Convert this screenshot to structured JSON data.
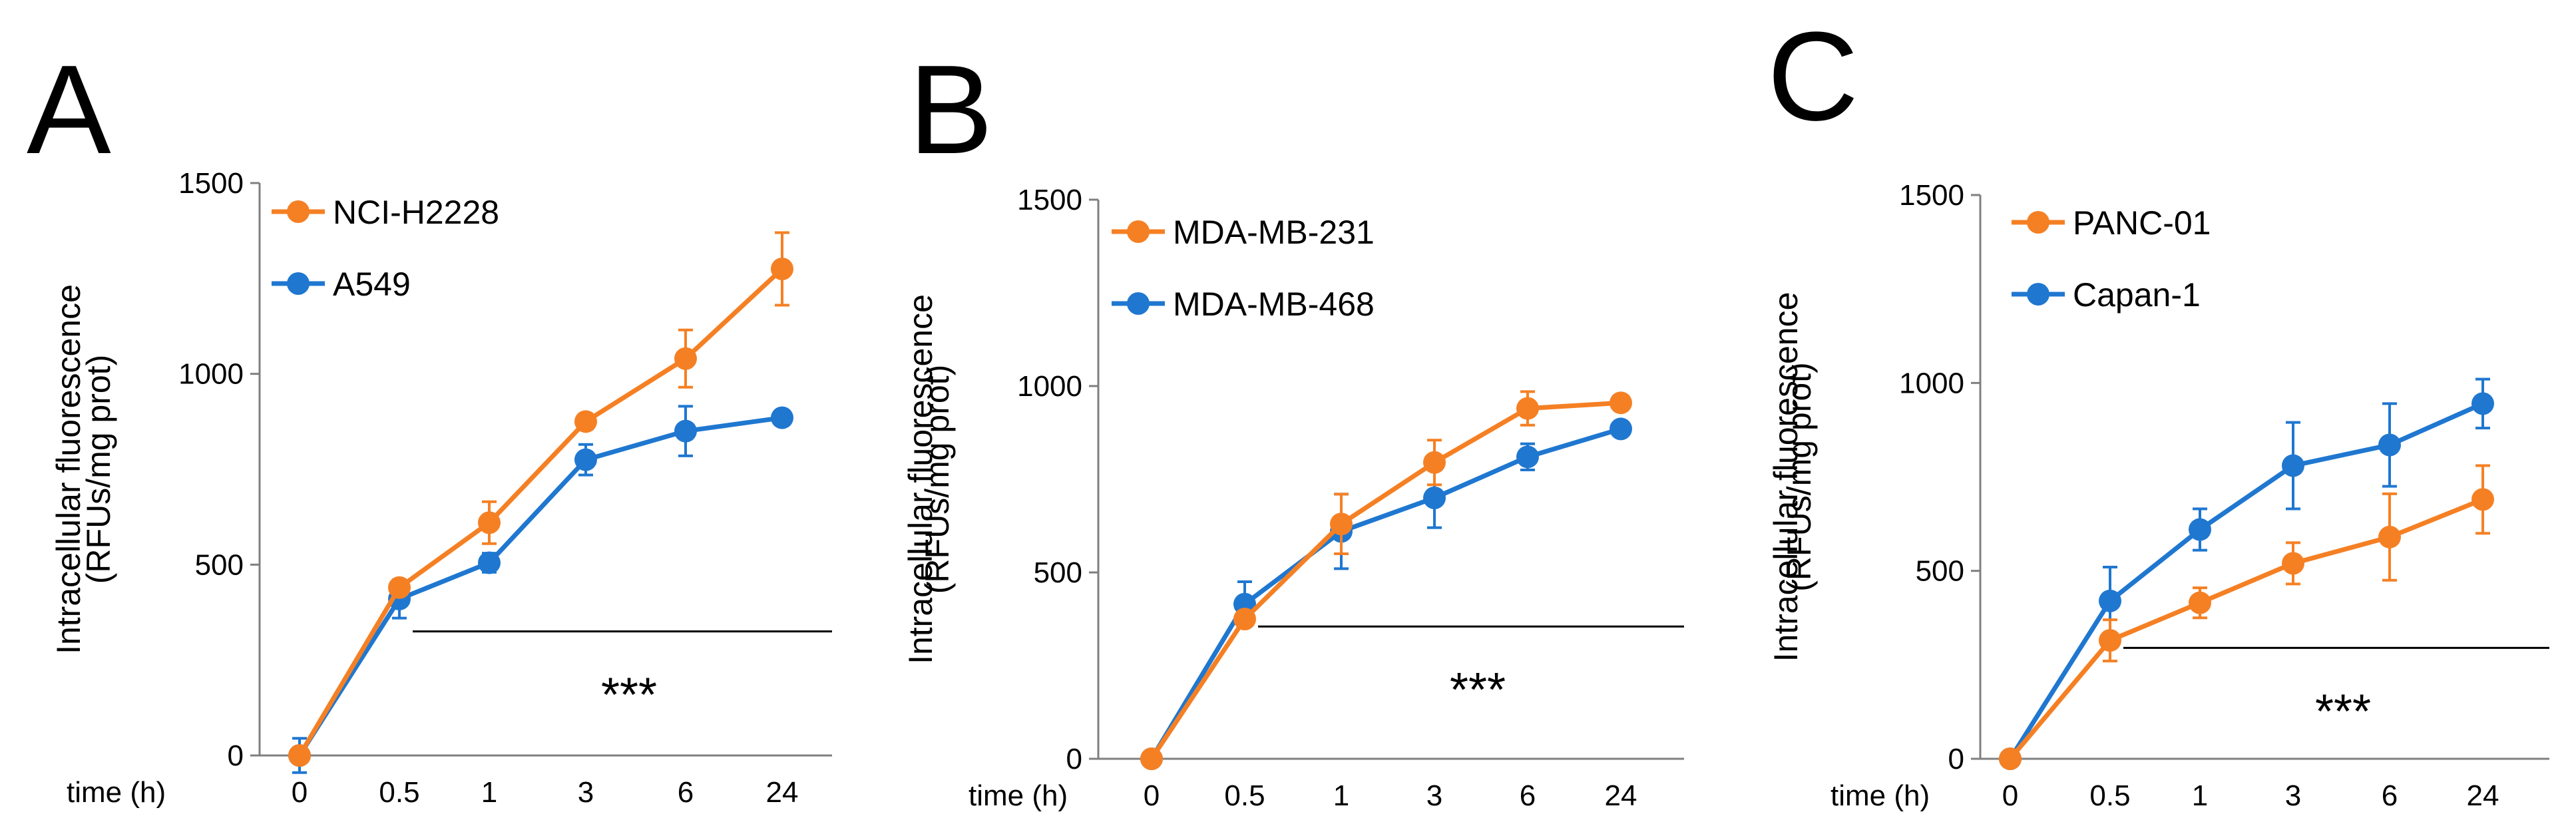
{
  "figure": {
    "background": "#ffffff"
  },
  "chart_data": [
    {
      "type": "line",
      "panel_label": "A",
      "categories": [
        "0",
        "0.5",
        "1",
        "3",
        "6",
        "24"
      ],
      "xlabel": "time (h)",
      "ylabel": [
        "Intracellular fluorescence",
        "(RFUs/mg prot)"
      ],
      "ylim": [
        0,
        1500
      ],
      "yticks": [
        0,
        500,
        1000,
        1500
      ],
      "grid": false,
      "legend": "top-left",
      "series": [
        {
          "name": "NCI-H2228",
          "color": "#F58024",
          "values": [
            0,
            440,
            610,
            875,
            1040,
            1275
          ],
          "errors": [
            10,
            15,
            55,
            20,
            75,
            95
          ]
        },
        {
          "name": "A549",
          "color": "#1F77D0",
          "values": [
            0,
            410,
            505,
            775,
            850,
            885
          ],
          "errors": [
            45,
            50,
            25,
            40,
            65,
            15
          ]
        }
      ],
      "annotation": {
        "text": "***",
        "from_category": "0.5",
        "to_category": "24",
        "y": 325
      }
    },
    {
      "type": "line",
      "panel_label": "B",
      "categories": [
        "0",
        "0.5",
        "1",
        "3",
        "6",
        "24"
      ],
      "xlabel": "time (h)",
      "ylabel": [
        "Intracellular fluorescence",
        "(RFUs/mg prot)"
      ],
      "ylim": [
        0,
        1500
      ],
      "yticks": [
        0,
        500,
        1000,
        1500
      ],
      "grid": false,
      "legend": "top-left",
      "series": [
        {
          "name": "MDA-MB-231",
          "color": "#F58024",
          "values": [
            0,
            375,
            630,
            795,
            940,
            955
          ],
          "errors": [
            10,
            15,
            80,
            60,
            45,
            20
          ]
        },
        {
          "name": "MDA-MB-468",
          "color": "#1F77D0",
          "values": [
            0,
            415,
            610,
            700,
            810,
            885
          ],
          "errors": [
            10,
            60,
            100,
            80,
            35,
            15
          ]
        }
      ],
      "annotation": {
        "text": "***",
        "from_category": "0.5",
        "to_category": "24",
        "y": 355
      }
    },
    {
      "type": "line",
      "panel_label": "C",
      "categories": [
        "0",
        "0.5",
        "1",
        "3",
        "6",
        "24"
      ],
      "xlabel": "time (h)",
      "ylabel": [
        "Intracellular fluorescence",
        "(RFUs/mg prot)"
      ],
      "ylim": [
        0,
        1500
      ],
      "yticks": [
        0,
        500,
        1000,
        1500
      ],
      "grid": false,
      "legend": "top-left",
      "series": [
        {
          "name": "PANC-01",
          "color": "#F58024",
          "values": [
            0,
            315,
            415,
            520,
            590,
            690
          ],
          "errors": [
            10,
            55,
            40,
            55,
            115,
            90
          ]
        },
        {
          "name": "Capan-1",
          "color": "#1F77D0",
          "values": [
            0,
            420,
            610,
            780,
            835,
            945
          ],
          "errors": [
            10,
            90,
            55,
            115,
            110,
            65
          ]
        }
      ],
      "annotation": {
        "text": "***",
        "from_category": "0.5",
        "to_category": "24",
        "y": 295
      }
    }
  ]
}
